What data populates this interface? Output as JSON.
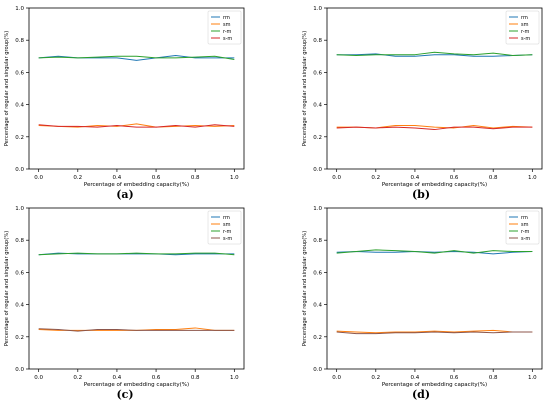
{
  "chart_data": [
    {
      "type": "line",
      "panel_label": "(a)",
      "xlabel": "Percentage of embedding capacity(%)",
      "ylabel": "Percentage of regular and singular group(%)",
      "xlim": [
        0.0,
        1.0
      ],
      "ylim": [
        0.0,
        1.0
      ],
      "x_ticks": [
        "0.0",
        "0.2",
        "0.4",
        "0.6",
        "0.8",
        "1.0"
      ],
      "y_ticks": [
        "0.0",
        "0.2",
        "0.4",
        "0.6",
        "0.8",
        "1.0"
      ],
      "legend_position": "top-right",
      "grid": false,
      "x": [
        0.0,
        0.1,
        0.2,
        0.3,
        0.4,
        0.5,
        0.6,
        0.7,
        0.8,
        0.9,
        1.0
      ],
      "series": [
        {
          "name": "rm",
          "color": "#1f77b4",
          "values": [
            0.69,
            0.7,
            0.69,
            0.69,
            0.69,
            0.675,
            0.69,
            0.705,
            0.69,
            0.69,
            0.69
          ]
        },
        {
          "name": "sm",
          "color": "#ff7f0e",
          "values": [
            0.27,
            0.265,
            0.26,
            0.27,
            0.265,
            0.28,
            0.26,
            0.265,
            0.27,
            0.265,
            0.27
          ]
        },
        {
          "name": "r-m",
          "color": "#2ca02c",
          "values": [
            0.69,
            0.695,
            0.69,
            0.695,
            0.7,
            0.7,
            0.69,
            0.69,
            0.695,
            0.7,
            0.68
          ]
        },
        {
          "name": "s-m",
          "color": "#d62728",
          "values": [
            0.275,
            0.265,
            0.265,
            0.26,
            0.27,
            0.26,
            0.26,
            0.27,
            0.26,
            0.275,
            0.265
          ]
        }
      ]
    },
    {
      "type": "line",
      "panel_label": "(b)",
      "xlabel": "Percentage of embedding capacity(%)",
      "ylabel": "Percentage of regular and singular group(%)",
      "xlim": [
        0.0,
        1.0
      ],
      "ylim": [
        0.0,
        1.0
      ],
      "x_ticks": [
        "0.0",
        "0.2",
        "0.4",
        "0.6",
        "0.8",
        "1.0"
      ],
      "y_ticks": [
        "0.0",
        "0.2",
        "0.4",
        "0.6",
        "0.8",
        "1.0"
      ],
      "legend_position": "top-right",
      "grid": false,
      "x": [
        0.0,
        0.1,
        0.2,
        0.3,
        0.4,
        0.5,
        0.6,
        0.7,
        0.8,
        0.9,
        1.0
      ],
      "series": [
        {
          "name": "rm",
          "color": "#1f77b4",
          "values": [
            0.71,
            0.71,
            0.715,
            0.7,
            0.7,
            0.71,
            0.71,
            0.7,
            0.7,
            0.705,
            0.71
          ]
        },
        {
          "name": "sm",
          "color": "#ff7f0e",
          "values": [
            0.26,
            0.26,
            0.255,
            0.27,
            0.27,
            0.26,
            0.255,
            0.27,
            0.255,
            0.265,
            0.26
          ]
        },
        {
          "name": "r-m",
          "color": "#2ca02c",
          "values": [
            0.71,
            0.705,
            0.71,
            0.71,
            0.71,
            0.725,
            0.715,
            0.71,
            0.72,
            0.705,
            0.71
          ]
        },
        {
          "name": "s-m",
          "color": "#d62728",
          "values": [
            0.255,
            0.26,
            0.255,
            0.26,
            0.255,
            0.245,
            0.26,
            0.26,
            0.25,
            0.26,
            0.26
          ]
        }
      ]
    },
    {
      "type": "line",
      "panel_label": "(c)",
      "xlabel": "Percentage of embedding capacity(%)",
      "ylabel": "Percentage of regular and singular group(%)",
      "xlim": [
        0.0,
        1.0
      ],
      "ylim": [
        0.0,
        1.0
      ],
      "x_ticks": [
        "0.0",
        "0.2",
        "0.4",
        "0.6",
        "0.8",
        "1.0"
      ],
      "y_ticks": [
        "0.0",
        "0.2",
        "0.4",
        "0.6",
        "0.8",
        "1.0"
      ],
      "legend_position": "top-right",
      "grid": false,
      "x": [
        0.0,
        0.1,
        0.2,
        0.3,
        0.4,
        0.5,
        0.6,
        0.7,
        0.8,
        0.9,
        1.0
      ],
      "series": [
        {
          "name": "rm",
          "color": "#1f77b4",
          "values": [
            0.71,
            0.72,
            0.715,
            0.715,
            0.715,
            0.715,
            0.715,
            0.71,
            0.715,
            0.715,
            0.715
          ]
        },
        {
          "name": "sm",
          "color": "#ff7f0e",
          "values": [
            0.245,
            0.24,
            0.24,
            0.24,
            0.24,
            0.24,
            0.245,
            0.245,
            0.255,
            0.24,
            0.24
          ]
        },
        {
          "name": "r-m",
          "color": "#2ca02c",
          "values": [
            0.71,
            0.715,
            0.72,
            0.715,
            0.715,
            0.72,
            0.715,
            0.715,
            0.72,
            0.72,
            0.71
          ]
        },
        {
          "name": "s-m",
          "color": "#8c564b",
          "values": [
            0.25,
            0.245,
            0.235,
            0.245,
            0.245,
            0.24,
            0.24,
            0.24,
            0.24,
            0.24,
            0.24
          ]
        }
      ]
    },
    {
      "type": "line",
      "panel_label": "(d)",
      "xlabel": "Percentage of embedding capacity(%)",
      "ylabel": "Percentage of regular and singular group(%)",
      "xlim": [
        0.0,
        1.0
      ],
      "ylim": [
        0.0,
        1.0
      ],
      "x_ticks": [
        "0.0",
        "0.2",
        "0.4",
        "0.6",
        "0.8",
        "1.0"
      ],
      "y_ticks": [
        "0.0",
        "0.2",
        "0.4",
        "0.6",
        "0.8",
        "1.0"
      ],
      "legend_position": "top-right",
      "grid": false,
      "x": [
        0.0,
        0.1,
        0.2,
        0.3,
        0.4,
        0.5,
        0.6,
        0.7,
        0.8,
        0.9,
        1.0
      ],
      "series": [
        {
          "name": "rm",
          "color": "#1f77b4",
          "values": [
            0.725,
            0.73,
            0.725,
            0.725,
            0.73,
            0.725,
            0.73,
            0.725,
            0.715,
            0.725,
            0.73
          ]
        },
        {
          "name": "sm",
          "color": "#ff7f0e",
          "values": [
            0.235,
            0.23,
            0.225,
            0.23,
            0.23,
            0.235,
            0.23,
            0.235,
            0.24,
            0.23,
            0.23
          ]
        },
        {
          "name": "r-m",
          "color": "#2ca02c",
          "values": [
            0.72,
            0.73,
            0.74,
            0.735,
            0.73,
            0.72,
            0.735,
            0.72,
            0.735,
            0.73,
            0.73
          ]
        },
        {
          "name": "s-m",
          "color": "#8c564b",
          "values": [
            0.23,
            0.22,
            0.22,
            0.225,
            0.225,
            0.23,
            0.225,
            0.23,
            0.225,
            0.23,
            0.23
          ]
        }
      ]
    }
  ]
}
